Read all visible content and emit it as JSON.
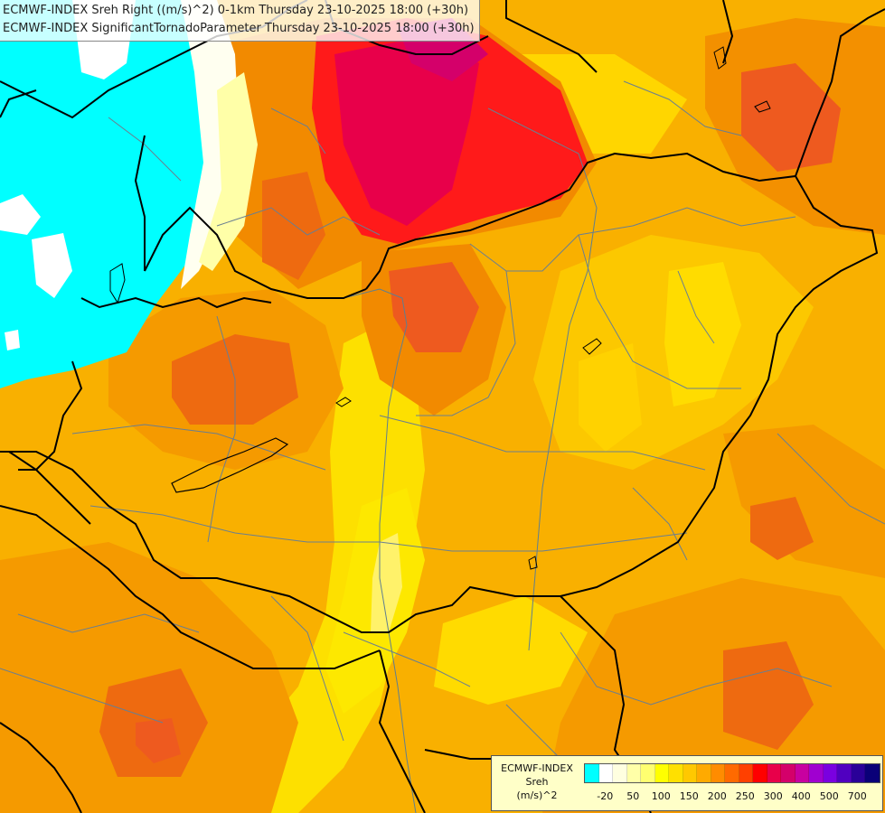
{
  "header": {
    "line1": "ECMWF-INDEX Sreh Right ((m/s)^2) 0-1km Thursday 23-10-2025 18:00 (+30h)",
    "line2": "ECMWF-INDEX SignificantTornadoParameter Thursday 23-10-2025 18:00 (+30h)"
  },
  "legend": {
    "model": "ECMWF-INDEX",
    "parameter": "Sreh",
    "unit": "(m/s)^2",
    "colors": [
      "#00ffff",
      "#ffffff",
      "#ffffe0",
      "#ffffa8",
      "#ffff70",
      "#ffff00",
      "#ffe000",
      "#ffc800",
      "#ffaa00",
      "#ff8c00",
      "#ff6a00",
      "#ff4000",
      "#ff0000",
      "#e8004a",
      "#d4006a",
      "#c800a0",
      "#a000d0",
      "#7a00e0",
      "#5000c0",
      "#2a0098",
      "#0a0078"
    ],
    "ticks": [
      "-20",
      "50",
      "100",
      "150",
      "200",
      "250",
      "300",
      "400",
      "500",
      "700"
    ]
  },
  "field_colors": {
    "cyan": "#00ffff",
    "pale": "#fffff0",
    "yellow": "#ffea00",
    "gold": "#fcc200",
    "orange": "#f9a300",
    "deep_orange": "#f47c15",
    "red_orange": "#ee5a1f",
    "red": "#ff1a1a",
    "crimson": "#e8004a"
  }
}
